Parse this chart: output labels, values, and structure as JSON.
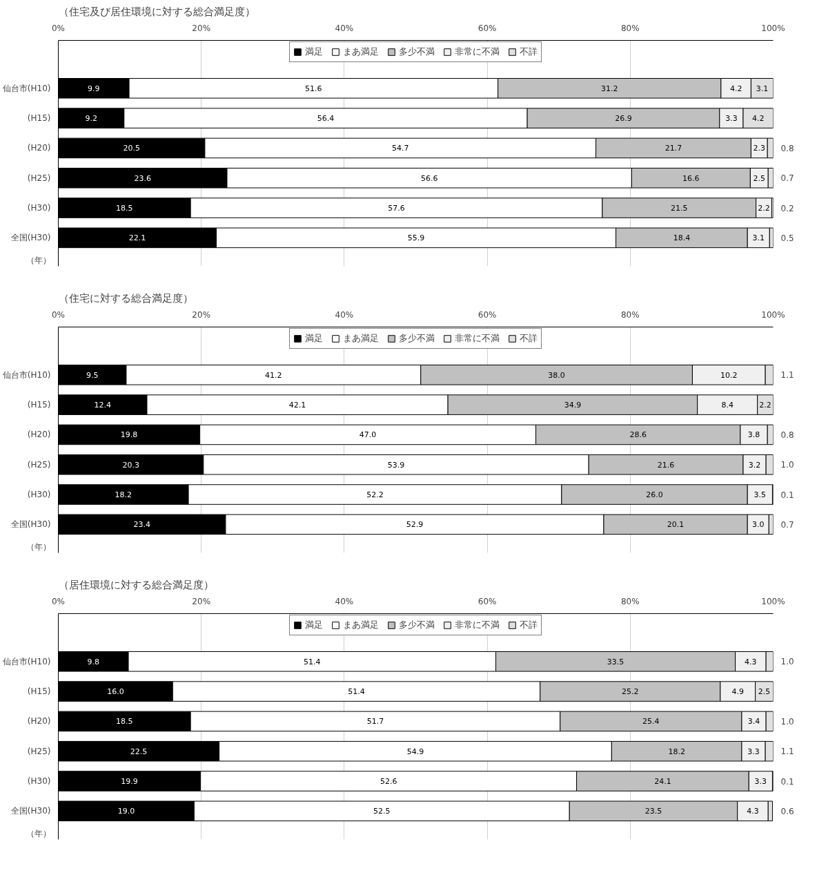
{
  "chart_data": [
    {
      "type": "bar",
      "orientation": "horizontal",
      "stacked": true,
      "title": "（住宅及び居住環境に対する総合満足度）",
      "ylabel": "（年）",
      "categories": [
        "仙台市(H10)",
        "(H15)",
        "(H20)",
        "(H25)",
        "(H30)",
        "全国(H30)"
      ],
      "series": [
        {
          "name": "満足",
          "color": "#000000",
          "values": [
            9.9,
            9.2,
            20.5,
            23.6,
            18.5,
            22.1
          ]
        },
        {
          "name": "まあ満足",
          "color": "#ffffff",
          "values": [
            51.6,
            56.4,
            54.7,
            56.6,
            57.6,
            55.9
          ]
        },
        {
          "name": "多少不満",
          "color": "#c0c0c0",
          "values": [
            31.2,
            26.9,
            21.7,
            16.6,
            21.5,
            18.4
          ]
        },
        {
          "name": "非常に不満",
          "color": "#f0f0f0",
          "values": [
            4.2,
            3.3,
            2.3,
            2.5,
            2.2,
            3.1
          ]
        },
        {
          "name": "不詳",
          "color": "#e0e0e0",
          "values": [
            3.1,
            4.2,
            0.8,
            0.7,
            0.2,
            0.5
          ]
        }
      ],
      "xlim": [
        0,
        100
      ],
      "xticks": [
        {
          "value": 0,
          "label": "0%"
        },
        {
          "value": 20,
          "label": "20%"
        },
        {
          "value": 40,
          "label": "40%"
        },
        {
          "value": 60,
          "label": "60%"
        },
        {
          "value": 80,
          "label": "80%"
        },
        {
          "value": 100,
          "label": "100%"
        }
      ],
      "grid": "x",
      "legend": "top",
      "data_labels": true
    },
    {
      "type": "bar",
      "orientation": "horizontal",
      "stacked": true,
      "title": "（住宅に対する総合満足度）",
      "ylabel": "（年）",
      "categories": [
        "仙台市(H10)",
        "(H15)",
        "(H20)",
        "(H25)",
        "(H30)",
        "全国(H30)"
      ],
      "series": [
        {
          "name": "満足",
          "color": "#000000",
          "values": [
            9.5,
            12.4,
            19.8,
            20.3,
            18.2,
            23.4
          ],
          "value_labels": [
            "9.5",
            "12.4",
            "19.8",
            "20.3",
            "18.2",
            "23.4"
          ]
        },
        {
          "name": "まあ満足",
          "color": "#ffffff",
          "values": [
            41.2,
            42.1,
            47.0,
            53.9,
            52.2,
            52.9
          ],
          "value_labels": [
            "41.2",
            "42.1",
            "47.0",
            "53.9",
            "52.2",
            "52.9"
          ]
        },
        {
          "name": "多少不満",
          "color": "#c0c0c0",
          "values": [
            38.0,
            34.9,
            28.6,
            21.6,
            26.0,
            20.1
          ],
          "value_labels": [
            "38.0",
            "34.9",
            "28.6",
            "21.6",
            "26.0",
            "20.1"
          ]
        },
        {
          "name": "非常に不満",
          "color": "#f0f0f0",
          "values": [
            10.2,
            8.4,
            3.8,
            3.2,
            3.5,
            3.0
          ],
          "value_labels": [
            "10.2",
            "8.4",
            "3.8",
            "3.2",
            "3.5",
            "3.0"
          ]
        },
        {
          "name": "不詳",
          "color": "#e0e0e0",
          "values": [
            1.1,
            2.2,
            0.8,
            1.0,
            0.1,
            0.7
          ],
          "value_labels": [
            "1.1",
            "2.2",
            "0.8",
            "1.0",
            "0.1",
            "0.7"
          ]
        }
      ],
      "xlim": [
        0,
        100
      ],
      "xticks": [
        {
          "value": 0,
          "label": "0%"
        },
        {
          "value": 20,
          "label": "20%"
        },
        {
          "value": 40,
          "label": "40%"
        },
        {
          "value": 60,
          "label": "60%"
        },
        {
          "value": 80,
          "label": "80%"
        },
        {
          "value": 100,
          "label": "100%"
        }
      ],
      "grid": "x",
      "legend": "top"
    },
    {
      "type": "bar",
      "orientation": "horizontal",
      "stacked": true,
      "title": "（居住環境に対する総合満足度）",
      "ylabel": "（年）",
      "categories": [
        "仙台市(H10)",
        "(H15)",
        "(H20)",
        "(H25)",
        "(H30)",
        "全国(H30)"
      ],
      "series": [
        {
          "name": "満足",
          "color": "#000000",
          "values": [
            9.8,
            16.0,
            18.5,
            22.5,
            19.9,
            19.0
          ],
          "value_labels": [
            "9.8",
            "16.0",
            "18.5",
            "22.5",
            "19.9",
            "19.0"
          ]
        },
        {
          "name": "まあ満足",
          "color": "#ffffff",
          "values": [
            51.4,
            51.4,
            51.7,
            54.9,
            52.6,
            52.5
          ],
          "value_labels": [
            "51.4",
            "51.4",
            "51.7",
            "54.9",
            "52.6",
            "52.5"
          ]
        },
        {
          "name": "多少不満",
          "color": "#c0c0c0",
          "values": [
            33.5,
            25.2,
            25.4,
            18.2,
            24.1,
            23.5
          ],
          "value_labels": [
            "33.5",
            "25.2",
            "25.4",
            "18.2",
            "24.1",
            "23.5"
          ]
        },
        {
          "name": "非常に不満",
          "color": "#f0f0f0",
          "values": [
            4.3,
            4.9,
            3.4,
            3.3,
            3.3,
            4.3
          ],
          "value_labels": [
            "4.3",
            "4.9",
            "3.4",
            "3.3",
            "3.3",
            "4.3"
          ]
        },
        {
          "name": "不詳",
          "color": "#e0e0e0",
          "values": [
            1.0,
            2.5,
            1.0,
            1.1,
            0.1,
            0.6
          ],
          "value_labels": [
            "1.0",
            "2.5",
            "1.0",
            "1.1",
            "0.1",
            "0.6"
          ]
        }
      ],
      "xlim": [
        0,
        100
      ],
      "xticks": [
        {
          "value": 0,
          "label": "0%"
        },
        {
          "value": 20,
          "label": "20%"
        },
        {
          "value": 40,
          "label": "40%"
        },
        {
          "value": 60,
          "label": "60%"
        },
        {
          "value": 80,
          "label": "80%"
        },
        {
          "value": 100,
          "label": "100%"
        }
      ],
      "grid": "x",
      "legend": "top"
    }
  ]
}
